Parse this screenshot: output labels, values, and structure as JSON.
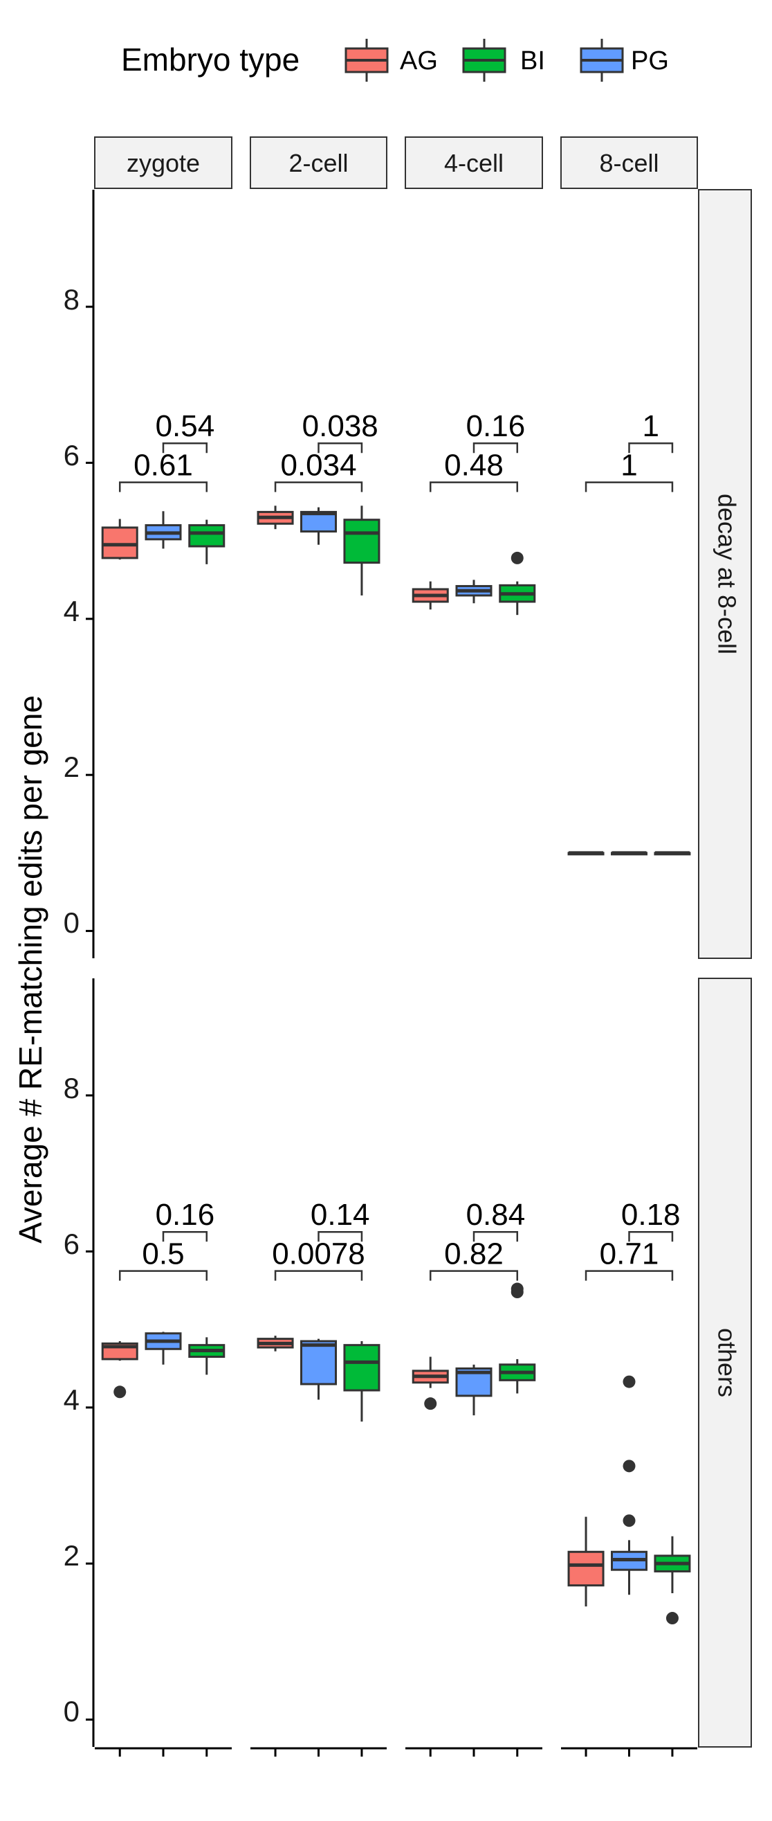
{
  "legend": {
    "title": "Embryo type",
    "position": "top",
    "items": [
      {
        "label": "AG",
        "color": "#F8766D"
      },
      {
        "label": "BI",
        "color": "#00BA38"
      },
      {
        "label": "PG",
        "color": "#619CFF"
      }
    ]
  },
  "chart_data": {
    "type": "boxplot",
    "ylabel": "Average # RE-matching edits per gene",
    "ylim": [
      0,
      9
    ],
    "yticks": [
      "0",
      "2",
      "4",
      "6",
      "8"
    ],
    "columns": [
      "zygote",
      "2-cell",
      "4-cell",
      "8-cell"
    ],
    "rows": [
      "decay at 8-cell",
      "others"
    ],
    "box_order": [
      "AG",
      "PG",
      "BI"
    ],
    "grid": false,
    "panels": [
      {
        "row": "decay at 8-cell",
        "column": "zygote",
        "boxes": [
          {
            "group": "AG",
            "q1": 4.78,
            "median": 4.95,
            "q3": 5.17,
            "lo": 4.76,
            "hi": 5.28,
            "outliers": []
          },
          {
            "group": "PG",
            "q1": 5.02,
            "median": 5.1,
            "q3": 5.2,
            "lo": 4.9,
            "hi": 5.38,
            "outliers": []
          },
          {
            "group": "BI",
            "q1": 4.93,
            "median": 5.1,
            "q3": 5.2,
            "lo": 4.7,
            "hi": 5.27,
            "outliers": []
          }
        ],
        "comparisons": [
          {
            "label": "0.61",
            "from": "AG",
            "to": "BI",
            "y": 5.75
          },
          {
            "label": "0.54",
            "from": "PG",
            "to": "BI",
            "y": 6.25
          }
        ]
      },
      {
        "row": "decay at 8-cell",
        "column": "2-cell",
        "boxes": [
          {
            "group": "AG",
            "q1": 5.22,
            "median": 5.3,
            "q3": 5.37,
            "lo": 5.15,
            "hi": 5.45,
            "outliers": []
          },
          {
            "group": "PG",
            "q1": 5.12,
            "median": 5.35,
            "q3": 5.37,
            "lo": 4.95,
            "hi": 5.43,
            "outliers": []
          },
          {
            "group": "BI",
            "q1": 4.72,
            "median": 5.1,
            "q3": 5.27,
            "lo": 4.3,
            "hi": 5.45,
            "outliers": []
          }
        ],
        "comparisons": [
          {
            "label": "0.034",
            "from": "AG",
            "to": "BI",
            "y": 5.75
          },
          {
            "label": "0.038",
            "from": "PG",
            "to": "BI",
            "y": 6.25
          }
        ]
      },
      {
        "row": "decay at 8-cell",
        "column": "4-cell",
        "boxes": [
          {
            "group": "AG",
            "q1": 4.22,
            "median": 4.3,
            "q3": 4.38,
            "lo": 4.12,
            "hi": 4.48,
            "outliers": []
          },
          {
            "group": "PG",
            "q1": 4.3,
            "median": 4.36,
            "q3": 4.42,
            "lo": 4.2,
            "hi": 4.5,
            "outliers": []
          },
          {
            "group": "BI",
            "q1": 4.22,
            "median": 4.32,
            "q3": 4.43,
            "lo": 4.05,
            "hi": 4.48,
            "outliers": [
              4.78
            ]
          }
        ],
        "comparisons": [
          {
            "label": "0.48",
            "from": "AG",
            "to": "BI",
            "y": 5.75
          },
          {
            "label": "0.16",
            "from": "PG",
            "to": "BI",
            "y": 6.25
          }
        ]
      },
      {
        "row": "decay at 8-cell",
        "column": "8-cell",
        "boxes": [
          {
            "group": "AG",
            "q1": 1.0,
            "median": 1.0,
            "q3": 1.0,
            "lo": 1.0,
            "hi": 1.0,
            "outliers": []
          },
          {
            "group": "PG",
            "q1": 1.0,
            "median": 1.0,
            "q3": 1.0,
            "lo": 1.0,
            "hi": 1.0,
            "outliers": []
          },
          {
            "group": "BI",
            "q1": 1.0,
            "median": 1.0,
            "q3": 1.0,
            "lo": 1.0,
            "hi": 1.0,
            "outliers": []
          }
        ],
        "comparisons": [
          {
            "label": "1",
            "from": "AG",
            "to": "BI",
            "y": 5.75
          },
          {
            "label": "1",
            "from": "PG",
            "to": "BI",
            "y": 6.25
          }
        ]
      },
      {
        "row": "others",
        "column": "zygote",
        "boxes": [
          {
            "group": "AG",
            "q1": 4.62,
            "median": 4.78,
            "q3": 4.82,
            "lo": 4.6,
            "hi": 4.85,
            "outliers": [
              4.2
            ]
          },
          {
            "group": "PG",
            "q1": 4.75,
            "median": 4.85,
            "q3": 4.95,
            "lo": 4.55,
            "hi": 4.97,
            "outliers": []
          },
          {
            "group": "BI",
            "q1": 4.65,
            "median": 4.73,
            "q3": 4.8,
            "lo": 4.42,
            "hi": 4.9,
            "outliers": []
          }
        ],
        "comparisons": [
          {
            "label": "0.5",
            "from": "AG",
            "to": "BI",
            "y": 5.75
          },
          {
            "label": "0.16",
            "from": "PG",
            "to": "BI",
            "y": 6.25
          }
        ]
      },
      {
        "row": "others",
        "column": "2-cell",
        "boxes": [
          {
            "group": "AG",
            "q1": 4.77,
            "median": 4.82,
            "q3": 4.88,
            "lo": 4.72,
            "hi": 4.92,
            "outliers": []
          },
          {
            "group": "PG",
            "q1": 4.3,
            "median": 4.8,
            "q3": 4.85,
            "lo": 4.1,
            "hi": 4.88,
            "outliers": []
          },
          {
            "group": "BI",
            "q1": 4.22,
            "median": 4.58,
            "q3": 4.8,
            "lo": 3.82,
            "hi": 4.85,
            "outliers": []
          }
        ],
        "comparisons": [
          {
            "label": "0.0078",
            "from": "AG",
            "to": "BI",
            "y": 5.75
          },
          {
            "label": "0.14",
            "from": "PG",
            "to": "BI",
            "y": 6.25
          }
        ]
      },
      {
        "row": "others",
        "column": "4-cell",
        "boxes": [
          {
            "group": "AG",
            "q1": 4.32,
            "median": 4.4,
            "q3": 4.47,
            "lo": 4.25,
            "hi": 4.65,
            "outliers": [
              4.05
            ]
          },
          {
            "group": "PG",
            "q1": 4.15,
            "median": 4.45,
            "q3": 4.5,
            "lo": 3.9,
            "hi": 4.55,
            "outliers": []
          },
          {
            "group": "BI",
            "q1": 4.35,
            "median": 4.45,
            "q3": 4.55,
            "lo": 4.18,
            "hi": 4.62,
            "outliers": [
              5.48,
              5.52
            ]
          }
        ],
        "comparisons": [
          {
            "label": "0.82",
            "from": "AG",
            "to": "BI",
            "y": 5.75
          },
          {
            "label": "0.84",
            "from": "PG",
            "to": "BI",
            "y": 6.25
          }
        ]
      },
      {
        "row": "others",
        "column": "8-cell",
        "boxes": [
          {
            "group": "AG",
            "q1": 1.72,
            "median": 1.98,
            "q3": 2.15,
            "lo": 1.45,
            "hi": 2.6,
            "outliers": []
          },
          {
            "group": "PG",
            "q1": 1.92,
            "median": 2.05,
            "q3": 2.15,
            "lo": 1.6,
            "hi": 2.3,
            "outliers": [
              2.55,
              3.25,
              4.33
            ]
          },
          {
            "group": "BI",
            "q1": 1.9,
            "median": 2.0,
            "q3": 2.1,
            "lo": 1.62,
            "hi": 2.35,
            "outliers": [
              1.3
            ]
          }
        ],
        "comparisons": [
          {
            "label": "0.71",
            "from": "AG",
            "to": "BI",
            "y": 5.75
          },
          {
            "label": "0.18",
            "from": "PG",
            "to": "BI",
            "y": 6.25
          }
        ]
      }
    ]
  }
}
